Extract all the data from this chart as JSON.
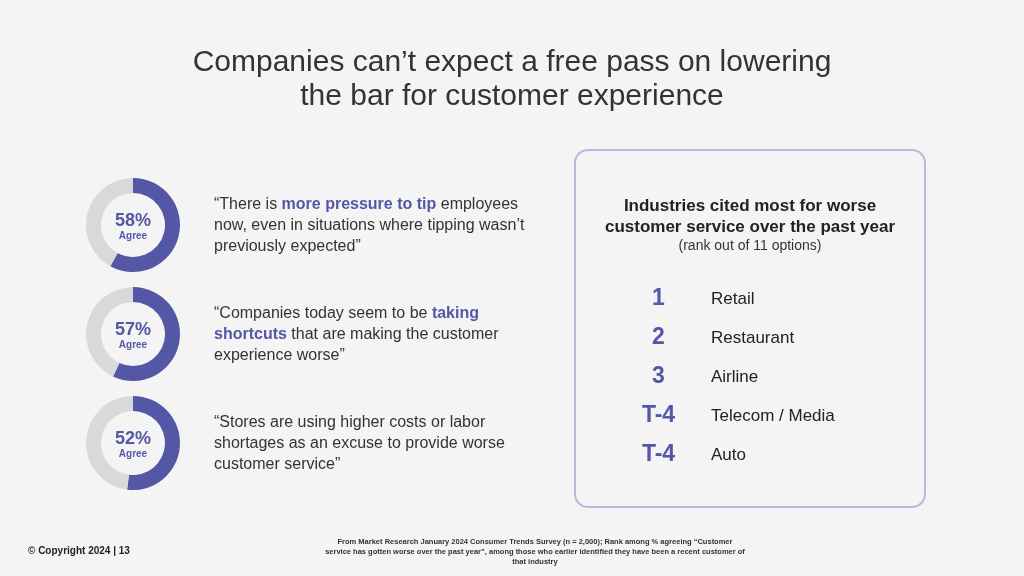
{
  "chart_data": [
    {
      "type": "donut",
      "title": "Companies can’t expect a free pass on lowering the bar for customer experience",
      "categories": [
        "Agree",
        null
      ],
      "values": [
        58,
        42
      ],
      "value_labels": [
        "58%",
        null
      ],
      "colors": [
        "#5457a6",
        "#d9d9d9"
      ],
      "annotations": [
        "“There is ",
        "more pressure to tip",
        " employees now, even in situations where tipping wasn’t previously expected”"
      ]
    },
    {
      "type": "donut",
      "categories": [
        "Agree",
        null
      ],
      "values": [
        57,
        43
      ],
      "value_labels": [
        "57%",
        null
      ],
      "colors": [
        "#5457a6",
        "#d9d9d9"
      ],
      "annotations": [
        "“Companies today seem to be ",
        "taking shortcuts",
        " that are making the customer experience worse”"
      ]
    },
    {
      "type": "donut",
      "categories": [
        "Agree",
        null
      ],
      "values": [
        52,
        48
      ],
      "value_labels": [
        "52%",
        null
      ],
      "colors": [
        "#5457a6",
        "#d9d9d9"
      ],
      "annotations": [
        "“Stores are using higher costs or labor shortages as an excuse to provide worse customer service”"
      ]
    },
    {
      "type": "other",
      "title": "Industries cited most for worse customer service over the past year",
      "subtitle": "(rank out of 11 options)",
      "categories": [
        "Retail",
        "Restaurant",
        "Airline",
        "Telecom / Media",
        "Auto"
      ],
      "value_labels": [
        "1",
        "2",
        "3",
        "T-4",
        "T-4"
      ],
      "annotations": [
        "© Copyright 2024  |  13",
        "From Market Research January 2024 Consumer Trends Survey (n = 2,000); Rank among % agreeing “Customer service has gotten worse over the past year”, among those who earlier identified they have been a recent customer of that industry"
      ]
    }
  ]
}
